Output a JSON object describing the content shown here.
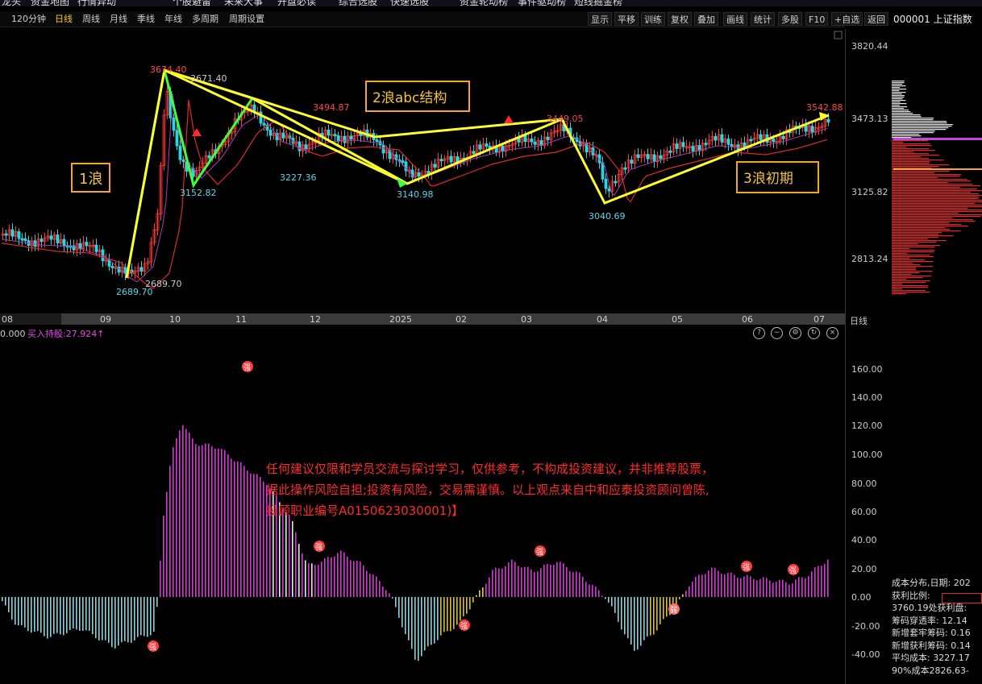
{
  "top_bar": {
    "items": [
      "龙头",
      "资金地图",
      "行情异动",
      "个股避雷",
      "未来大事",
      "开盘必读",
      "综合选股",
      "快速选股",
      "资金轮动榜",
      "事件驱动榜",
      "短线掘金榜"
    ]
  },
  "period_bar": {
    "periods": [
      "120分钟",
      "日线",
      "周线",
      "月线",
      "季线",
      "年线",
      "多周期",
      "周期设置"
    ],
    "active": "日线"
  },
  "toolbar": {
    "items": [
      "显示",
      "平移",
      "训练",
      "复权",
      "叠加",
      "画线",
      "统计",
      "多股",
      "F10",
      "+自选",
      "返回"
    ]
  },
  "index_name": "000001 上证指数",
  "price_axis": [
    "3820.44",
    "3473.13",
    "3125.82",
    "2813.24"
  ],
  "time_axis": {
    "months": [
      "08",
      "09",
      "10",
      "11",
      "12",
      "2025",
      "02",
      "03",
      "04",
      "05",
      "06",
      "07"
    ],
    "period_label": "日线"
  },
  "main_chart_labels": {
    "p2689": "2689.70",
    "p2689b": "2689.70",
    "p3674": "3674.40",
    "p3671": "3671.40",
    "p3152": "3152.82",
    "p3494": "3494.87",
    "p3227": "3227.36",
    "p3140": "3140.98",
    "p3449": "3449.05",
    "p3040": "3040.69",
    "p3542": "3542.88",
    "wave1": "1浪",
    "wave2": "2浪abc结构",
    "wave3": "3浪初期"
  },
  "indicator": {
    "header_left": "0.000",
    "header_label": "买入持股:27.924↑",
    "axis": [
      "160.00",
      "140.00",
      "120.00",
      "100.00",
      "80.00",
      "60.00",
      "40.00",
      "20.00",
      "0.00",
      "-20.00",
      "-40.00"
    ],
    "strong_mark": "强",
    "weak_mark": "弱",
    "icons": [
      "help-icon",
      "zoom-out-icon",
      "settings-icon",
      "refresh-icon",
      "close-icon"
    ]
  },
  "disclaimer": {
    "line1": "任何建议仅限和学员交流与探讨学习，仅供参考，不构成投资建议，并非推荐股票，",
    "line2": "据此操作风险自担;投资有风险，交易需谨慎。以上观点来自中和应泰投资顾问曾陈,",
    "line3": "投顾职业编号A0150623030001)】"
  },
  "cost_panel": {
    "line1": "成本分布,日期: 202",
    "line2": "获利比例:",
    "line3": "3760.19处获利盘:",
    "line4": "筹码穿透率: 12.14",
    "line5": "新增套牢筹码: 0.16",
    "line6": "新增获利筹码: 0.14",
    "line7": "平均成本: 3227.17",
    "line8": "90%成本2826.63-"
  },
  "colors": {
    "up": "#ff3b3b",
    "down": "#27d7e0",
    "wave": "#ffff2e",
    "green": "#3dff3d",
    "purple": "#d43ad4",
    "label_red": "#ff4848",
    "label_cyan": "#5ad6e8"
  }
}
